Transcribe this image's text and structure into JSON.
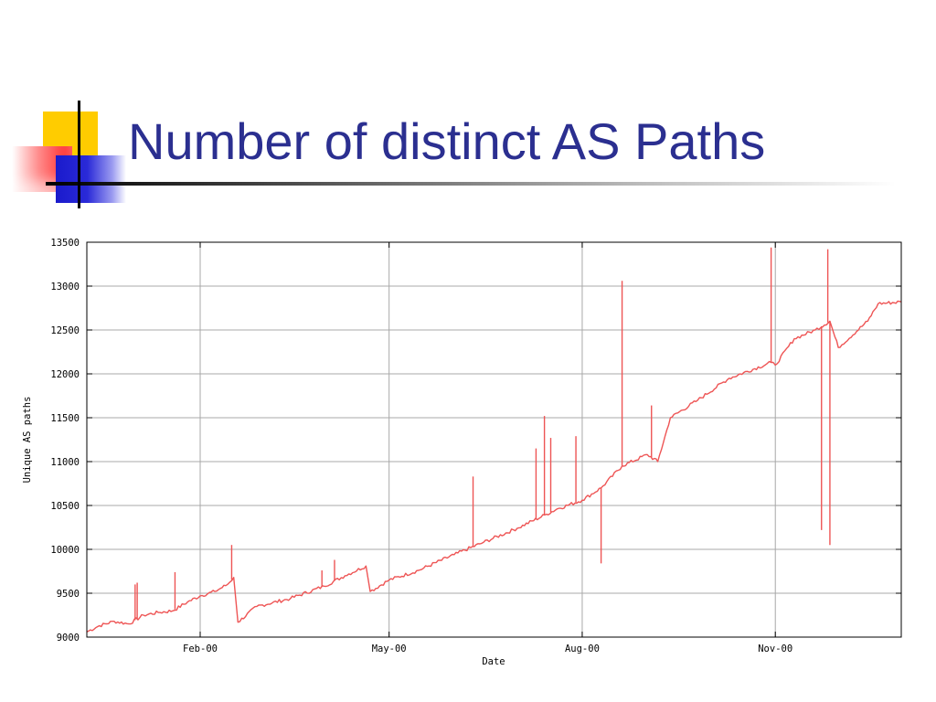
{
  "slide": {
    "title": "Number of distinct AS Paths"
  },
  "colors": {
    "title": "#2b2f90",
    "series": "#ee5555",
    "grid": "#a8a8a8"
  },
  "chart_data": {
    "type": "line",
    "xlabel": "Date",
    "ylabel": "Unique AS paths",
    "x_domain": [
      "1999-12-09",
      "2000-12-31"
    ],
    "xticks": [
      {
        "label": "Feb-00",
        "date": "2000-02-01"
      },
      {
        "label": "May-00",
        "date": "2000-05-01"
      },
      {
        "label": "Aug-00",
        "date": "2000-08-01"
      },
      {
        "label": "Nov-00",
        "date": "2000-11-01"
      }
    ],
    "yticks": [
      9000,
      9500,
      10000,
      10500,
      11000,
      11500,
      12000,
      12500,
      13000,
      13500
    ],
    "ylim": [
      9000,
      13500
    ],
    "grid": true,
    "series": [
      {
        "color": "#ee5555",
        "points": [
          [
            "1999-12-09",
            9060
          ],
          [
            "1999-12-15",
            9130
          ],
          [
            "1999-12-22",
            9180
          ],
          [
            "1999-12-29",
            9150
          ],
          [
            "2000-01-05",
            9250
          ],
          [
            "2000-01-12",
            9280
          ],
          [
            "2000-01-19",
            9300
          ],
          [
            "2000-01-26",
            9400
          ],
          [
            "2000-02-01",
            9470
          ],
          [
            "2000-02-08",
            9520
          ],
          [
            "2000-02-14",
            9600
          ],
          [
            "2000-02-17",
            9680
          ],
          [
            "2000-02-19",
            9170
          ],
          [
            "2000-02-28",
            9350
          ],
          [
            "2000-03-15",
            9440
          ],
          [
            "2000-03-31",
            9580
          ],
          [
            "2000-04-10",
            9700
          ],
          [
            "2000-04-20",
            9810
          ],
          [
            "2000-04-22",
            9520
          ],
          [
            "2000-05-01",
            9650
          ],
          [
            "2000-05-15",
            9760
          ],
          [
            "2000-06-01",
            9940
          ],
          [
            "2000-06-15",
            10080
          ],
          [
            "2000-07-01",
            10240
          ],
          [
            "2000-07-15",
            10400
          ],
          [
            "2000-07-20",
            10460
          ],
          [
            "2000-08-01",
            10560
          ],
          [
            "2000-08-10",
            10700
          ],
          [
            "2000-08-20",
            10950
          ],
          [
            "2000-09-01",
            11080
          ],
          [
            "2000-09-06",
            11000
          ],
          [
            "2000-09-12",
            11500
          ],
          [
            "2000-09-25",
            11700
          ],
          [
            "2000-10-10",
            11950
          ],
          [
            "2000-10-30",
            12130
          ],
          [
            "2000-11-01",
            12100
          ],
          [
            "2000-11-10",
            12400
          ],
          [
            "2000-11-20",
            12500
          ],
          [
            "2000-11-27",
            12600
          ],
          [
            "2000-12-01",
            12300
          ],
          [
            "2000-12-15",
            12600
          ],
          [
            "2000-12-20",
            12800
          ],
          [
            "2000-12-31",
            12820
          ]
        ],
        "spikes": [
          [
            "2000-01-01",
            9600
          ],
          [
            "2000-01-02",
            9620
          ],
          [
            "2000-01-20",
            9740
          ],
          [
            "2000-02-16",
            10050
          ],
          [
            "2000-03-30",
            9760
          ],
          [
            "2000-04-05",
            9880
          ],
          [
            "2000-06-10",
            10830
          ],
          [
            "2000-07-10",
            11150
          ],
          [
            "2000-07-14",
            11520
          ],
          [
            "2000-07-17",
            11270
          ],
          [
            "2000-07-29",
            11290
          ],
          [
            "2000-08-10",
            9840
          ],
          [
            "2000-08-20",
            13060
          ],
          [
            "2000-09-03",
            11640
          ],
          [
            "2000-10-30",
            13440
          ],
          [
            "2000-11-23",
            10220
          ],
          [
            "2000-11-26",
            13420
          ],
          [
            "2000-11-27",
            10050
          ]
        ]
      }
    ]
  }
}
